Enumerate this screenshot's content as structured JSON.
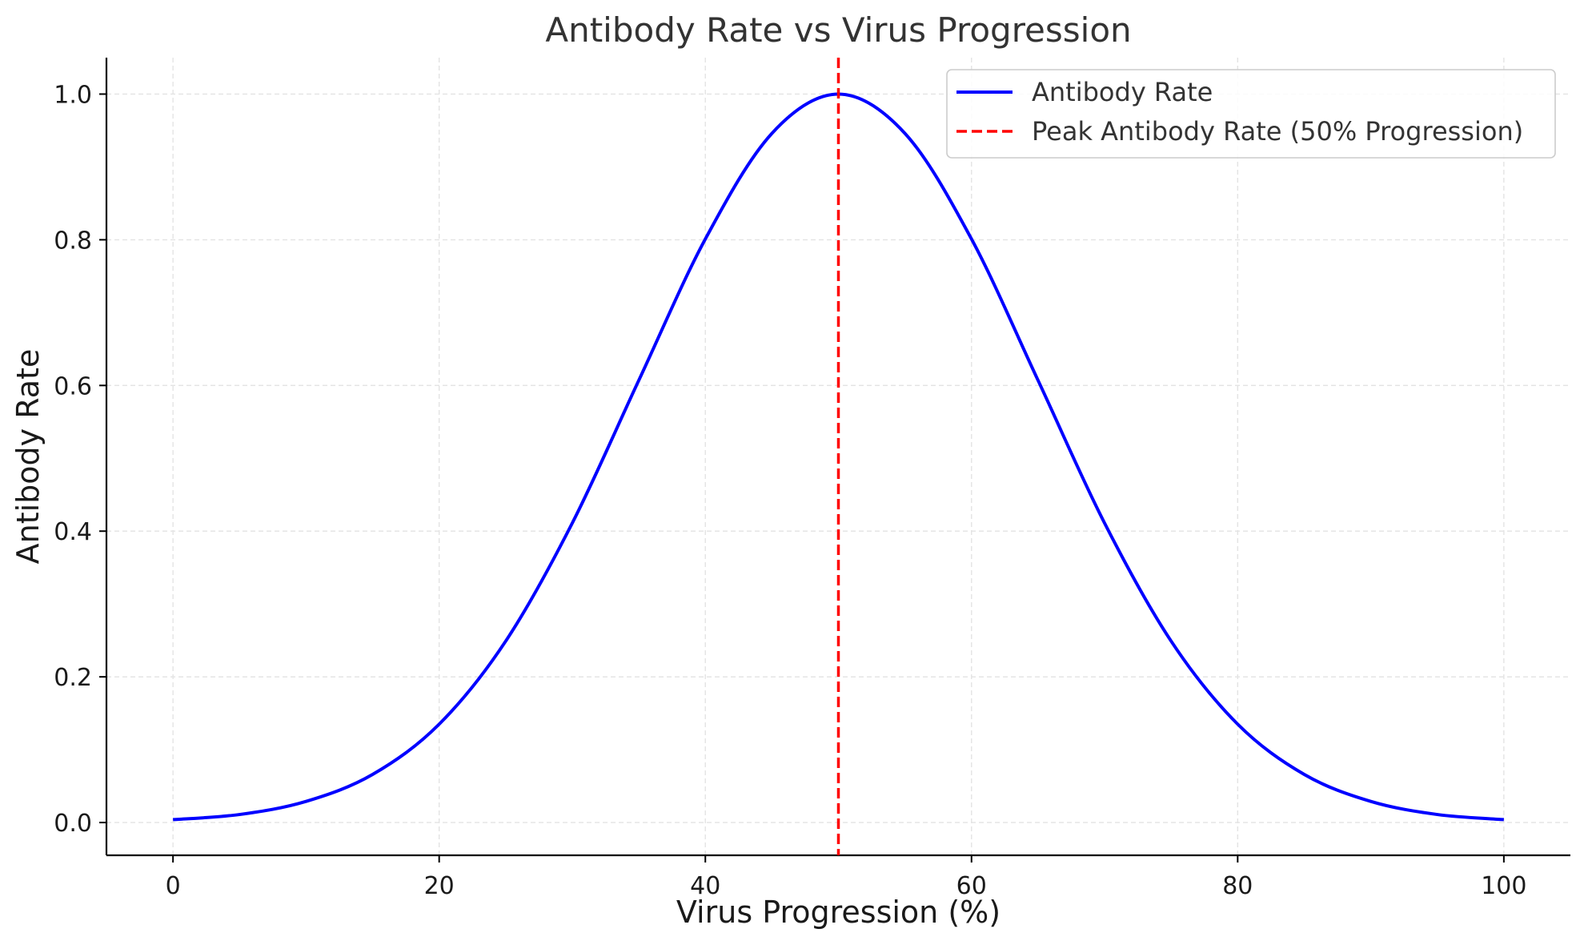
{
  "chart_data": {
    "type": "line",
    "title": "Antibody Rate vs Virus Progression",
    "xlabel": "Virus Progression (%)",
    "ylabel": "Antibody Rate",
    "xlim": [
      -5,
      105
    ],
    "ylim": [
      -0.045,
      1.05
    ],
    "xticks": [
      0,
      20,
      40,
      60,
      80,
      100
    ],
    "xtick_labels": [
      "0",
      "20",
      "40",
      "60",
      "80",
      "100"
    ],
    "yticks": [
      0.0,
      0.2,
      0.4,
      0.6,
      0.8,
      1.0
    ],
    "ytick_labels": [
      "0.0",
      "0.2",
      "0.4",
      "0.6",
      "0.8",
      "1.0"
    ],
    "grid": true,
    "legend_position": "upper right",
    "series": [
      {
        "name": "Antibody Rate",
        "color": "#0000ff",
        "style": "solid",
        "x": [
          0,
          5,
          10,
          15,
          20,
          25,
          30,
          35,
          40,
          45,
          50,
          55,
          60,
          65,
          70,
          75,
          80,
          85,
          90,
          95,
          100
        ],
        "y": [
          0.004,
          0.011,
          0.029,
          0.066,
          0.135,
          0.249,
          0.411,
          0.607,
          0.801,
          0.946,
          1.0,
          0.946,
          0.801,
          0.607,
          0.411,
          0.249,
          0.135,
          0.066,
          0.029,
          0.011,
          0.004
        ]
      },
      {
        "name": "Peak Antibody Rate (50% Progression)",
        "color": "#ff0000",
        "style": "dashed",
        "kind": "vline",
        "x_value": 50
      }
    ]
  }
}
